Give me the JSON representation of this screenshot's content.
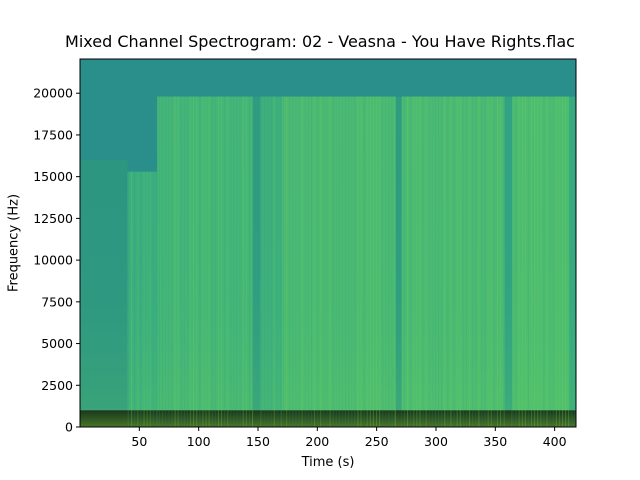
{
  "chart_data": {
    "type": "heatmap",
    "title": "Mixed Channel Spectrogram: 02 - Veasna - You Have Rights.flac",
    "xlabel": "Time (s)",
    "ylabel": "Frequency (Hz)",
    "xlim": [
      0,
      418
    ],
    "ylim": [
      0,
      22050
    ],
    "x_ticks": [
      50,
      100,
      150,
      200,
      250,
      300,
      350,
      400
    ],
    "y_ticks": [
      0,
      2500,
      5000,
      7500,
      10000,
      12500,
      15000,
      17500,
      20000
    ],
    "colormap": "viridis",
    "grid": false,
    "colors": {
      "background": "#2a8e8b",
      "dim_band": "#2b8f8a",
      "mid_band": "#33a884",
      "bright_band": "#4fbe6f",
      "low_freq": "#7dd04b",
      "dropout": "#24787d"
    },
    "time_segments": [
      {
        "start": 0,
        "end": 40,
        "cutoff_hz": 16000,
        "level": 0.25
      },
      {
        "start": 40,
        "end": 65,
        "cutoff_hz": 15300,
        "level": 0.5
      },
      {
        "start": 65,
        "end": 145,
        "cutoff_hz": 19800,
        "level": 0.65
      },
      {
        "start": 145,
        "end": 152,
        "cutoff_hz": 19800,
        "level": 0.3
      },
      {
        "start": 152,
        "end": 170,
        "cutoff_hz": 19800,
        "level": 0.55
      },
      {
        "start": 170,
        "end": 266,
        "cutoff_hz": 19800,
        "level": 0.75
      },
      {
        "start": 266,
        "end": 271,
        "cutoff_hz": 19800,
        "level": 0.3
      },
      {
        "start": 271,
        "end": 358,
        "cutoff_hz": 19800,
        "level": 0.75
      },
      {
        "start": 358,
        "end": 364,
        "cutoff_hz": 19800,
        "level": 0.35
      },
      {
        "start": 364,
        "end": 412,
        "cutoff_hz": 19800,
        "level": 0.78
      },
      {
        "start": 412,
        "end": 418,
        "cutoff_hz": 19800,
        "level": 0.45
      }
    ]
  }
}
